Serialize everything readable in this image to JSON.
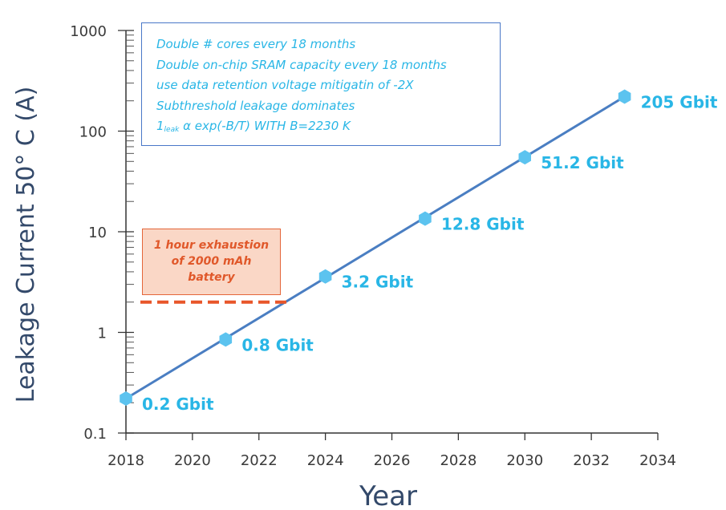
{
  "chart_data": {
    "type": "scatter",
    "xlabel": "Year",
    "ylabel": "Leakage Current 50° C (A)",
    "xlim": [
      2018,
      2034
    ],
    "ylim": [
      0.1,
      1000
    ],
    "yscale": "log",
    "x_ticks": [
      "2018",
      "2020",
      "2022",
      "2024",
      "2026",
      "2028",
      "2030",
      "2032",
      "2034"
    ],
    "y_ticks": [
      "0.1",
      "1",
      "10",
      "100",
      "1000"
    ],
    "series": [
      {
        "points": [
          {
            "x": 2018,
            "y": 0.22,
            "label": "0.2 Gbit"
          },
          {
            "x": 2021,
            "y": 0.85,
            "label": "0.8 Gbit"
          },
          {
            "x": 2024,
            "y": 3.6,
            "label": "3.2 Gbit"
          },
          {
            "x": 2027,
            "y": 13.5,
            "label": "12.8 Gbit"
          },
          {
            "x": 2030,
            "y": 55,
            "label": "51.2 Gbit"
          },
          {
            "x": 2033,
            "y": 220,
            "label": "205 Gbit"
          }
        ],
        "fit_line": true,
        "color": "#4a7ec2",
        "marker_color": "#5cc3ef"
      }
    ],
    "threshold": {
      "y": 2,
      "x_end": 2023,
      "color": "#e8562a"
    },
    "annotation_lines": [
      "Double # cores every 18 months",
      "Double on-chip SRAM capacity every 18 months",
      "use data retention voltage mitigatin of -2X",
      "Subthreshold leakage dominates"
    ],
    "formula": {
      "prefix": "1",
      "sub": "leak",
      "rest": " α exp(-B/T) WITH B=2230 K"
    },
    "battery_note": [
      "1 hour exhaustion",
      "of 2000 mAh",
      "battery"
    ],
    "grid": false
  }
}
